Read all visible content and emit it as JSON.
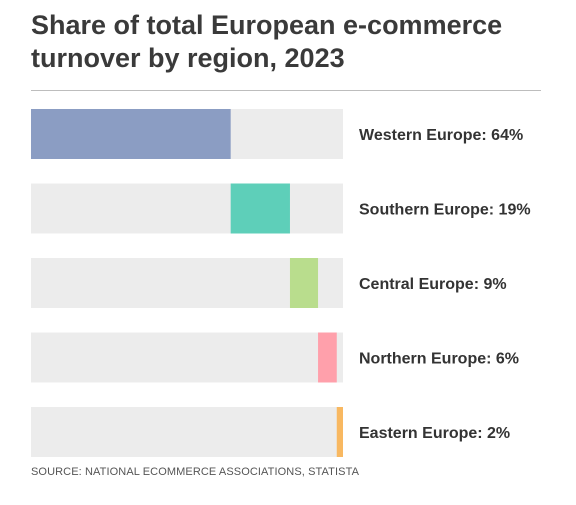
{
  "chart_data": {
    "type": "bar",
    "title": "Share of total European e-commerce turnover by region, 2023",
    "categories": [
      "Western Europe",
      "Southern Europe",
      "Central Europe",
      "Northern Europe",
      "Eastern Europe"
    ],
    "values": [
      64,
      19,
      9,
      6,
      2
    ],
    "unit": "%",
    "colors": [
      "#8b9dc3",
      "#5ecfb9",
      "#b9dd8d",
      "#ffa0ab",
      "#f8b861"
    ],
    "track_color": "#ececec",
    "xlim": [
      0,
      100
    ],
    "stacked_waterfall": true,
    "labels": [
      "Western Europe: 64%",
      "Southern Europe: 19%",
      "Central Europe: 9%",
      "Northern Europe: 6%",
      "Eastern Europe: 2%"
    ],
    "source": "SOURCE: NATIONAL ECOMMERCE ASSOCIATIONS, STATISTA"
  }
}
